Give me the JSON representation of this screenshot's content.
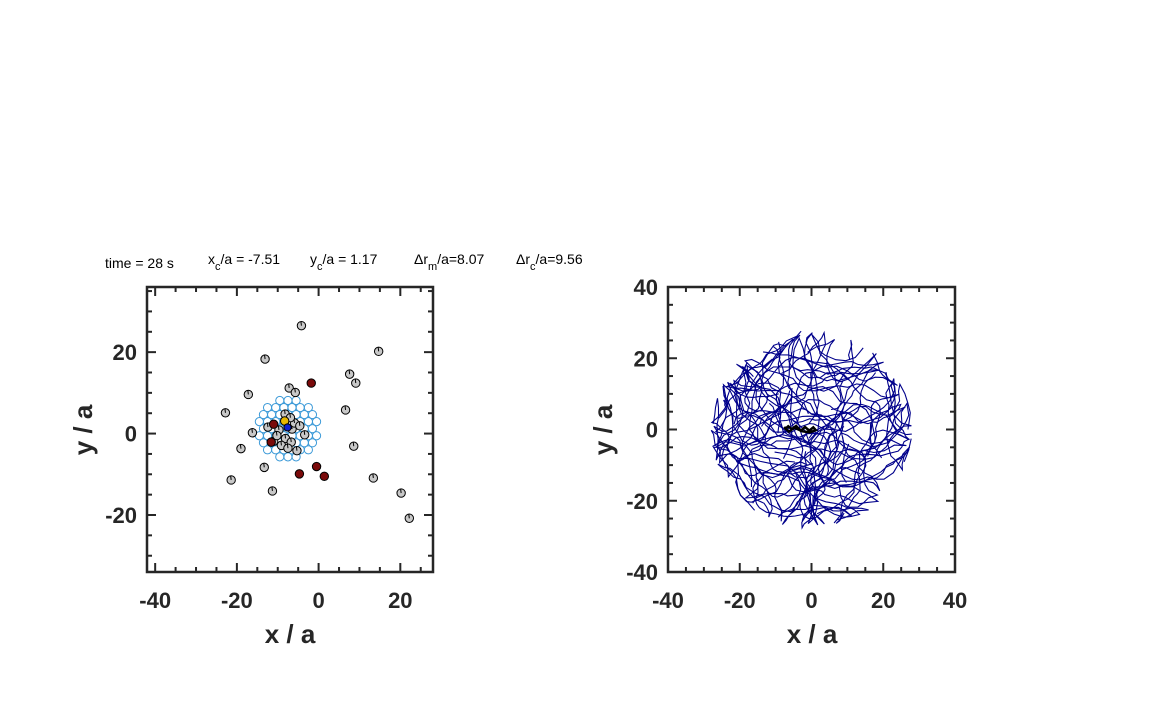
{
  "info": {
    "time": "time = 28 s",
    "xc_prefix": "x",
    "xc_sub": "c",
    "xc_suffix": "/a = -7.51",
    "yc_prefix": "y",
    "yc_sub": "c",
    "yc_suffix": "/a = 1.17",
    "drm_prefix": "Δr",
    "drm_sub": "m",
    "drm_suffix": "/a=8.07",
    "drc_prefix": "Δr",
    "drc_sub": "c",
    "drc_suffix": "/a=9.56"
  },
  "colors": {
    "axes": "#262626",
    "grey_particle": "#c8c8c8",
    "dark_particle": "#7a0a0a",
    "lattice_ring": "#3c9ad8",
    "yellow_particle": "#e8b800",
    "blue_particle": "#0a1fd6",
    "trajectory": "#00008b",
    "center_trajectory": "#000000"
  },
  "chart_data": [
    {
      "type": "scatter",
      "xlabel": "x / a",
      "ylabel": "y / a",
      "xlim": [
        -42,
        28
      ],
      "ylim": [
        -34,
        36
      ],
      "xticks": [
        -40,
        -20,
        0,
        20
      ],
      "yticks": [
        -20,
        0,
        20
      ],
      "minor_tick_step": 5,
      "grid": false,
      "series": [
        {
          "kind": "grey",
          "points": [
            [
              -4.2,
              26.5
            ],
            [
              -13.1,
              18.3
            ],
            [
              14.7,
              20.2
            ],
            [
              -7.2,
              11.2
            ],
            [
              -5.7,
              10.1
            ],
            [
              7.6,
              14.6
            ],
            [
              9.1,
              12.4
            ],
            [
              -17.2,
              9.6
            ],
            [
              -22.8,
              5.1
            ],
            [
              6.6,
              5.8
            ],
            [
              -16.2,
              0.2
            ],
            [
              -19.0,
              -3.7
            ],
            [
              8.6,
              -3.1
            ],
            [
              -13.3,
              -8.3
            ],
            [
              -21.4,
              -11.4
            ],
            [
              -11.3,
              -14.1
            ],
            [
              13.4,
              -10.9
            ],
            [
              20.2,
              -14.6
            ],
            [
              22.2,
              -20.8
            ],
            [
              -9.7,
              0.9
            ],
            [
              -6.5,
              1.1
            ],
            [
              -8.1,
              -1.2
            ],
            [
              -6.7,
              -2.1
            ],
            [
              -9.1,
              -2.9
            ],
            [
              -5.3,
              -4.2
            ],
            [
              -7.5,
              -3.6
            ],
            [
              -3.4,
              -0.3
            ],
            [
              -8.2,
              4.8
            ],
            [
              -5.9,
              2.6
            ],
            [
              -12.4,
              1.6
            ],
            [
              -11.0,
              -1.9
            ],
            [
              -10.2,
              -0.5
            ],
            [
              -4.6,
              1.9
            ],
            [
              -6.9,
              3.9
            ]
          ]
        },
        {
          "kind": "dark",
          "points": [
            [
              -1.8,
              12.4
            ],
            [
              -11.0,
              2.3
            ],
            [
              -11.6,
              -2.1
            ],
            [
              -4.7,
              -9.9
            ],
            [
              -0.5,
              -8.1
            ],
            [
              1.4,
              -10.5
            ]
          ]
        },
        {
          "kind": "yellow",
          "points": [
            [
              -8.3,
              3.1
            ]
          ]
        },
        {
          "kind": "blue",
          "points": [
            [
              -7.6,
              1.5
            ]
          ]
        },
        {
          "kind": "lattice",
          "center": [
            -7.5,
            1.2
          ],
          "spacing": 2.0,
          "radius": 7.5
        }
      ]
    },
    {
      "type": "line",
      "xlabel": "x / a",
      "ylabel": "y / a",
      "xlim": [
        -40,
        40
      ],
      "ylim": [
        -40,
        40
      ],
      "xticks": [
        -40,
        -20,
        0,
        20,
        40
      ],
      "yticks": [
        -40,
        -20,
        0,
        20,
        40
      ],
      "minor_tick_step": 5,
      "grid": false,
      "series": [
        {
          "kind": "trajectories",
          "num_paths": 40,
          "points_per_path": 40,
          "seed": 7,
          "bound_radius": 28
        },
        {
          "kind": "center",
          "points": [
            [
              -7.5,
              0
            ],
            [
              -6.5,
              0.9
            ],
            [
              -5.5,
              0.1
            ],
            [
              -4.3,
              1.0
            ],
            [
              -3.0,
              -0.4
            ],
            [
              -1.8,
              0.7
            ],
            [
              -0.6,
              -0.3
            ],
            [
              0.5,
              0.6
            ],
            [
              1.2,
              -0.2
            ],
            [
              -0.5,
              -0.8
            ],
            [
              -2.5,
              -0.5
            ],
            [
              -4.8,
              0.5
            ],
            [
              -6.3,
              -0.6
            ],
            [
              -7.6,
              0.7
            ]
          ]
        }
      ]
    }
  ]
}
